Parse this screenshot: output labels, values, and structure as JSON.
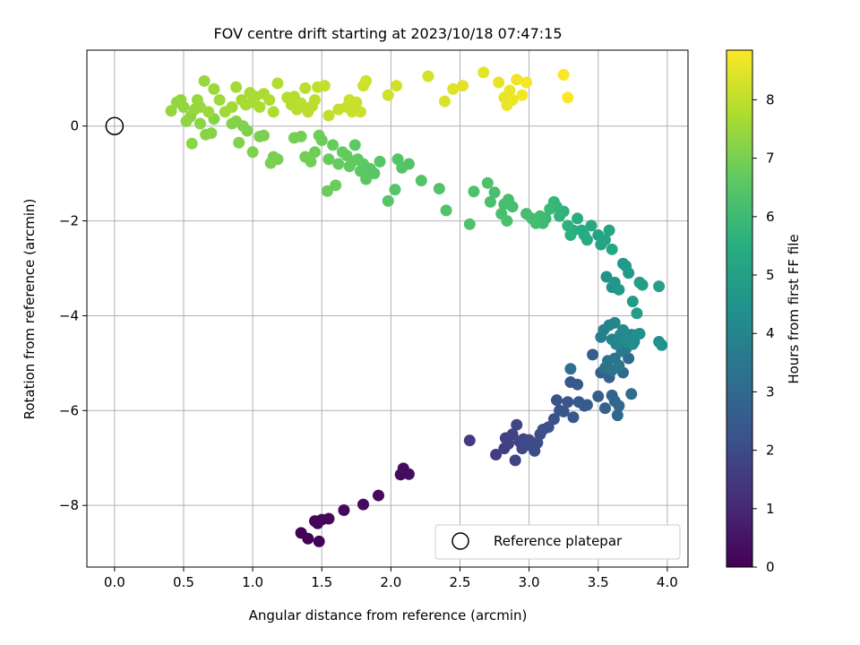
{
  "chart_data": {
    "type": "scatter",
    "title": "FOV centre drift starting at 2023/10/18 07:47:15",
    "xlabel": "Angular distance from reference (arcmin)",
    "ylabel": "Rotation from reference (arcmin)",
    "xlim": [
      -0.2,
      4.15
    ],
    "ylim": [
      -9.3,
      1.6
    ],
    "xticks": [
      "0.0",
      "0.5",
      "1.0",
      "1.5",
      "2.0",
      "2.5",
      "3.0",
      "3.5",
      "4.0"
    ],
    "yticks": [
      "0",
      "−2",
      "−4",
      "−6",
      "−8"
    ],
    "grid": true,
    "colormap": "viridis",
    "colorbar": {
      "label": "Hours from first FF file",
      "range": [
        0,
        8.85
      ],
      "ticks": [
        "0",
        "1",
        "2",
        "3",
        "4",
        "5",
        "6",
        "7",
        "8"
      ]
    },
    "legend": {
      "position": "lower-right",
      "entries": [
        {
          "label": "Reference platepar",
          "marker": "open-circle"
        }
      ]
    },
    "reference_point": {
      "x": 0,
      "y": 0
    },
    "points": [
      [
        1.35,
        -8.58,
        0.02
      ],
      [
        1.4,
        -8.7,
        0.05
      ],
      [
        1.48,
        -8.76,
        0.08
      ],
      [
        1.45,
        -8.33,
        0.1
      ],
      [
        1.47,
        -8.38,
        0.12
      ],
      [
        1.5,
        -8.3,
        0.14
      ],
      [
        1.55,
        -8.28,
        0.16
      ],
      [
        1.66,
        -8.1,
        0.19
      ],
      [
        1.8,
        -7.98,
        0.22
      ],
      [
        1.91,
        -7.79,
        0.25
      ],
      [
        2.07,
        -7.35,
        0.28
      ],
      [
        2.09,
        -7.22,
        0.3
      ],
      [
        2.13,
        -7.34,
        0.32
      ],
      [
        2.57,
        -6.63,
        1.55
      ],
      [
        2.76,
        -6.93,
        1.6
      ],
      [
        2.82,
        -6.8,
        1.65
      ],
      [
        2.83,
        -6.58,
        1.68
      ],
      [
        2.85,
        -6.7,
        1.72
      ],
      [
        2.88,
        -6.5,
        1.76
      ],
      [
        2.9,
        -7.05,
        1.78
      ],
      [
        2.93,
        -6.65,
        1.82
      ],
      [
        2.91,
        -6.3,
        1.85
      ],
      [
        2.95,
        -6.8,
        1.88
      ],
      [
        2.96,
        -6.6,
        1.92
      ],
      [
        2.98,
        -6.7,
        1.95
      ],
      [
        3.0,
        -6.62,
        1.98
      ],
      [
        3.02,
        -6.75,
        2.0
      ],
      [
        3.04,
        -6.85,
        2.03
      ],
      [
        3.06,
        -6.68,
        2.06
      ],
      [
        3.08,
        -6.5,
        2.1
      ],
      [
        3.1,
        -6.4,
        2.14
      ],
      [
        3.14,
        -6.35,
        2.18
      ],
      [
        3.18,
        -6.18,
        2.22
      ],
      [
        3.2,
        -5.78,
        2.26
      ],
      [
        3.22,
        -6.0,
        2.3
      ],
      [
        3.25,
        -6.02,
        2.34
      ],
      [
        3.28,
        -5.82,
        2.38
      ],
      [
        3.3,
        -5.4,
        2.4
      ],
      [
        3.32,
        -6.14,
        2.42
      ],
      [
        3.35,
        -5.45,
        2.44
      ],
      [
        3.36,
        -5.82,
        2.48
      ],
      [
        3.4,
        -5.9,
        2.52
      ],
      [
        3.42,
        -5.88,
        2.56
      ],
      [
        3.46,
        -4.82,
        2.6
      ],
      [
        3.5,
        -5.7,
        2.65
      ],
      [
        3.52,
        -5.2,
        2.7
      ],
      [
        3.55,
        -5.95,
        2.75
      ],
      [
        3.58,
        -5.3,
        2.8
      ],
      [
        3.6,
        -5.68,
        2.85
      ],
      [
        3.62,
        -5.8,
        2.9
      ],
      [
        3.64,
        -6.1,
        2.95
      ],
      [
        3.65,
        -5.9,
        3.0
      ],
      [
        3.68,
        -5.2,
        3.05
      ],
      [
        3.72,
        -4.9,
        3.1
      ],
      [
        3.74,
        -5.65,
        3.15
      ],
      [
        3.3,
        -5.12,
        3.2
      ],
      [
        3.55,
        -5.1,
        3.3
      ],
      [
        3.57,
        -4.95,
        3.35
      ],
      [
        3.6,
        -5.15,
        3.4
      ],
      [
        3.62,
        -4.9,
        3.45
      ],
      [
        3.65,
        -5.05,
        3.5
      ],
      [
        3.67,
        -4.75,
        3.55
      ],
      [
        3.7,
        -4.7,
        3.6
      ],
      [
        3.72,
        -4.55,
        3.65
      ],
      [
        3.74,
        -4.4,
        3.7
      ],
      [
        3.76,
        -4.55,
        3.75
      ],
      [
        3.52,
        -4.45,
        3.8
      ],
      [
        3.54,
        -4.3,
        3.85
      ],
      [
        3.58,
        -4.2,
        3.9
      ],
      [
        3.6,
        -4.5,
        3.95
      ],
      [
        3.62,
        -4.15,
        4.0
      ],
      [
        3.63,
        -4.6,
        4.05
      ],
      [
        3.66,
        -4.4,
        4.1
      ],
      [
        3.68,
        -4.3,
        4.15
      ],
      [
        3.7,
        -4.55,
        4.2
      ],
      [
        3.72,
        -4.48,
        4.25
      ],
      [
        3.75,
        -4.6,
        4.3
      ],
      [
        3.78,
        -4.4,
        4.35
      ],
      [
        3.8,
        -4.38,
        4.4
      ],
      [
        3.94,
        -4.55,
        4.42
      ],
      [
        3.96,
        -4.62,
        4.45
      ],
      [
        3.56,
        -3.18,
        4.5
      ],
      [
        3.6,
        -3.4,
        4.55
      ],
      [
        3.62,
        -3.3,
        4.6
      ],
      [
        3.65,
        -3.45,
        4.65
      ],
      [
        3.68,
        -2.9,
        4.7
      ],
      [
        3.72,
        -3.1,
        4.75
      ],
      [
        3.75,
        -3.7,
        4.8
      ],
      [
        3.78,
        -3.95,
        4.85
      ],
      [
        3.8,
        -3.3,
        4.9
      ],
      [
        3.82,
        -3.35,
        4.95
      ],
      [
        3.94,
        -3.38,
        5.0
      ],
      [
        3.7,
        -2.95,
        4.72
      ],
      [
        3.5,
        -2.3,
        5.05
      ],
      [
        3.52,
        -2.5,
        5.1
      ],
      [
        3.55,
        -2.4,
        5.15
      ],
      [
        3.58,
        -2.2,
        5.2
      ],
      [
        3.6,
        -2.6,
        5.25
      ],
      [
        3.45,
        -2.1,
        5.3
      ],
      [
        3.42,
        -2.4,
        5.35
      ],
      [
        3.4,
        -2.3,
        5.4
      ],
      [
        3.38,
        -2.2,
        5.45
      ],
      [
        3.35,
        -1.95,
        5.5
      ],
      [
        3.32,
        -2.2,
        5.55
      ],
      [
        3.3,
        -2.3,
        5.6
      ],
      [
        3.28,
        -2.1,
        5.65
      ],
      [
        3.25,
        -1.8,
        5.7
      ],
      [
        3.22,
        -1.9,
        5.75
      ],
      [
        3.2,
        -1.7,
        5.8
      ],
      [
        3.18,
        -1.6,
        5.85
      ],
      [
        3.15,
        -1.75,
        5.9
      ],
      [
        3.12,
        -1.95,
        5.95
      ],
      [
        3.1,
        -2.05,
        6.0
      ],
      [
        3.08,
        -1.9,
        6.05
      ],
      [
        3.05,
        -2.05,
        6.08
      ],
      [
        3.02,
        -1.95,
        6.1
      ],
      [
        2.98,
        -1.85,
        6.12
      ],
      [
        2.88,
        -1.7,
        6.14
      ],
      [
        2.85,
        -1.55,
        6.16
      ],
      [
        2.82,
        -1.65,
        6.18
      ],
      [
        2.8,
        -1.85,
        6.2
      ],
      [
        2.75,
        -1.4,
        6.22
      ],
      [
        2.72,
        -1.6,
        6.24
      ],
      [
        2.7,
        -1.2,
        6.26
      ],
      [
        2.84,
        -2.0,
        6.28
      ],
      [
        2.6,
        -1.38,
        6.3
      ],
      [
        2.57,
        -2.07,
        6.32
      ],
      [
        2.4,
        -1.78,
        6.34
      ],
      [
        2.35,
        -1.32,
        6.36
      ],
      [
        2.22,
        -1.15,
        6.38
      ],
      [
        2.13,
        -0.8,
        6.4
      ],
      [
        2.08,
        -0.88,
        6.42
      ],
      [
        2.05,
        -0.7,
        6.44
      ],
      [
        2.03,
        -1.34,
        6.46
      ],
      [
        1.98,
        -1.58,
        6.48
      ],
      [
        1.92,
        -0.75,
        6.5
      ],
      [
        1.88,
        -1.0,
        6.52
      ],
      [
        1.85,
        -0.9,
        6.54
      ],
      [
        1.82,
        -1.12,
        6.56
      ],
      [
        1.8,
        -0.8,
        6.58
      ],
      [
        1.78,
        -0.95,
        6.6
      ],
      [
        1.76,
        -0.7,
        6.62
      ],
      [
        1.74,
        -0.4,
        6.64
      ],
      [
        1.72,
        -0.75,
        6.66
      ],
      [
        1.7,
        -0.85,
        6.68
      ],
      [
        1.68,
        -0.62,
        6.7
      ],
      [
        1.65,
        -0.55,
        6.72
      ],
      [
        1.62,
        -0.8,
        6.74
      ],
      [
        1.58,
        -0.4,
        6.76
      ],
      [
        1.55,
        -0.7,
        6.78
      ],
      [
        1.6,
        -1.25,
        6.8
      ],
      [
        1.54,
        -1.37,
        6.82
      ],
      [
        1.5,
        -0.3,
        6.84
      ],
      [
        1.48,
        -0.2,
        6.86
      ],
      [
        1.45,
        -0.55,
        6.88
      ],
      [
        1.42,
        -0.75,
        6.9
      ],
      [
        1.38,
        -0.65,
        6.92
      ],
      [
        1.35,
        -0.22,
        6.94
      ],
      [
        1.3,
        -0.25,
        6.96
      ],
      [
        1.18,
        -0.7,
        6.98
      ],
      [
        1.15,
        -0.65,
        7.0
      ],
      [
        1.13,
        -0.78,
        7.02
      ],
      [
        1.08,
        -0.2,
        7.04
      ],
      [
        1.05,
        -0.22,
        7.06
      ],
      [
        1.0,
        -0.55,
        7.08
      ],
      [
        0.96,
        -0.1,
        7.1
      ],
      [
        0.93,
        0.0,
        7.12
      ],
      [
        0.9,
        -0.35,
        7.14
      ],
      [
        0.88,
        0.1,
        7.16
      ],
      [
        0.85,
        0.05,
        7.18
      ],
      [
        0.72,
        0.15,
        7.2
      ],
      [
        0.7,
        -0.15,
        7.22
      ],
      [
        0.66,
        -0.18,
        7.24
      ],
      [
        0.62,
        0.05,
        7.26
      ],
      [
        0.56,
        -0.37,
        7.28
      ],
      [
        0.55,
        0.2,
        7.3
      ],
      [
        0.52,
        0.1,
        7.32
      ],
      [
        0.5,
        0.4,
        7.34
      ],
      [
        0.48,
        0.55,
        7.36
      ],
      [
        0.45,
        0.5,
        7.38
      ],
      [
        0.41,
        0.32,
        7.4
      ],
      [
        0.58,
        0.35,
        7.42
      ],
      [
        0.6,
        0.55,
        7.44
      ],
      [
        0.62,
        0.4,
        7.46
      ],
      [
        0.65,
        0.95,
        7.48
      ],
      [
        0.68,
        0.3,
        7.5
      ],
      [
        0.72,
        0.78,
        7.52
      ],
      [
        0.76,
        0.55,
        7.54
      ],
      [
        0.8,
        0.3,
        7.56
      ],
      [
        0.85,
        0.4,
        7.58
      ],
      [
        0.88,
        0.82,
        7.6
      ],
      [
        0.92,
        0.55,
        7.62
      ],
      [
        0.95,
        0.45,
        7.64
      ],
      [
        0.98,
        0.7,
        7.66
      ],
      [
        1.0,
        0.5,
        7.68
      ],
      [
        1.02,
        0.62,
        7.7
      ],
      [
        1.05,
        0.4,
        7.72
      ],
      [
        1.08,
        0.68,
        7.74
      ],
      [
        1.12,
        0.55,
        7.76
      ],
      [
        1.15,
        0.3,
        7.78
      ],
      [
        1.18,
        0.9,
        7.8
      ],
      [
        1.25,
        0.6,
        7.82
      ],
      [
        1.28,
        0.45,
        7.84
      ],
      [
        1.3,
        0.62,
        7.86
      ],
      [
        1.32,
        0.35,
        7.88
      ],
      [
        1.35,
        0.48,
        7.9
      ],
      [
        1.38,
        0.8,
        7.92
      ],
      [
        1.4,
        0.3,
        7.94
      ],
      [
        1.43,
        0.42,
        7.96
      ],
      [
        1.45,
        0.55,
        7.98
      ],
      [
        1.47,
        0.82,
        8.0
      ],
      [
        1.52,
        0.85,
        8.02
      ],
      [
        1.55,
        0.22,
        8.04
      ],
      [
        1.62,
        0.35,
        8.06
      ],
      [
        1.68,
        0.4,
        8.08
      ],
      [
        1.7,
        0.55,
        8.1
      ],
      [
        1.72,
        0.3,
        8.12
      ],
      [
        1.75,
        0.5,
        8.14
      ],
      [
        1.78,
        0.3,
        8.16
      ],
      [
        1.8,
        0.85,
        8.18
      ],
      [
        1.82,
        0.95,
        8.2
      ],
      [
        1.98,
        0.65,
        8.22
      ],
      [
        2.04,
        0.85,
        8.24
      ],
      [
        2.27,
        1.05,
        8.3
      ],
      [
        2.39,
        0.52,
        8.35
      ],
      [
        2.45,
        0.78,
        8.4
      ],
      [
        2.52,
        0.85,
        8.45
      ],
      [
        2.67,
        1.13,
        8.5
      ],
      [
        2.78,
        0.92,
        8.55
      ],
      [
        2.82,
        0.6,
        8.58
      ],
      [
        2.84,
        0.44,
        8.6
      ],
      [
        2.86,
        0.75,
        8.62
      ],
      [
        2.88,
        0.55,
        8.65
      ],
      [
        2.91,
        0.98,
        8.68
      ],
      [
        2.95,
        0.65,
        8.72
      ],
      [
        2.98,
        0.92,
        8.76
      ],
      [
        3.25,
        1.08,
        8.8
      ],
      [
        3.28,
        0.6,
        8.84
      ]
    ]
  }
}
